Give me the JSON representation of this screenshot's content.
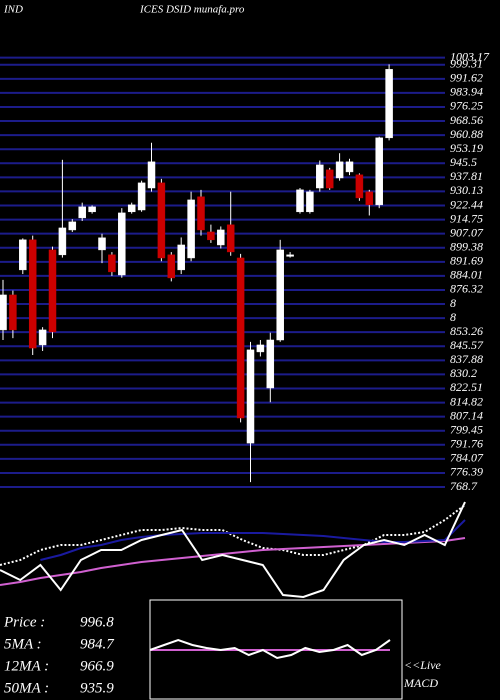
{
  "chart_data": {
    "type": "candlestick",
    "title_left": "IND",
    "title_right": "ICES DSID munafa.pro",
    "ylim": [
      765,
      1006
    ],
    "yticks": [
      1003.17,
      999.31,
      991.62,
      983.94,
      976.25,
      968.56,
      960.88,
      953.19,
      945.5,
      937.81,
      930.13,
      922.44,
      914.75,
      907.07,
      899.38,
      891.69,
      884.01,
      876.32,
      {
        "value": 868.63,
        "label": "8"
      },
      {
        "value": 860.94,
        "label": "8"
      },
      853.26,
      845.57,
      837.88,
      830.2,
      822.51,
      814.82,
      807.14,
      799.45,
      791.76,
      784.07,
      776.39,
      768.7
    ],
    "grid": true,
    "up_color": "#ffffff",
    "down_color": "#cc0000",
    "grid_color": "#1c1c8a",
    "open": [
      854.5,
      873.6,
      887.3,
      903.7,
      846.3,
      898.2,
      895.5,
      909.1,
      915.7,
      919.0,
      898.2,
      895.5,
      884.5,
      919.0,
      920.0,
      932.0,
      934.8,
      895.5,
      887.3,
      893.8,
      927.2,
      908.0,
      900.9,
      911.9,
      893.8,
      792.7,
      842.5,
      822.8,
      849.0,
      895.5,
      919.0,
      919.0,
      932.0,
      941.9,
      937.5,
      940.8,
      939.2,
      929.9,
      922.8,
      959.4
    ],
    "high": [
      881.8,
      876.0,
      904.5,
      906.0,
      856.0,
      900.0,
      947.4,
      915.0,
      924.0,
      922.5,
      907.0,
      897.0,
      921.0,
      924.0,
      936.0,
      956.7,
      937.0,
      897.0,
      905.0,
      930.0,
      931.0,
      912.0,
      911.0,
      930.0,
      896.0,
      848.0,
      849.0,
      853.0,
      903.7,
      897.0,
      932.0,
      931.0,
      947.0,
      943.0,
      951.0,
      948.0,
      940.0,
      931.0,
      960.0,
      999.5
    ],
    "low": [
      849.0,
      850.0,
      885.0,
      840.8,
      843.0,
      850.0,
      894.0,
      908.0,
      914.0,
      918.0,
      891.0,
      884.0,
      883.0,
      918.0,
      919.0,
      930.0,
      892.0,
      881.0,
      885.0,
      892.0,
      906.0,
      902.0,
      899.0,
      895.0,
      804.0,
      771.4,
      840.0,
      815.0,
      848.0,
      894.0,
      918.0,
      918.0,
      930.0,
      931.0,
      936.0,
      939.0,
      925.0,
      917.0,
      921.0,
      958.0
    ],
    "close": [
      873.6,
      854.5,
      903.7,
      844.6,
      854.5,
      853.4,
      910.2,
      913.5,
      921.7,
      921.7,
      904.8,
      886.2,
      918.4,
      922.8,
      934.8,
      946.3,
      893.8,
      882.9,
      900.9,
      925.5,
      909.1,
      903.7,
      909.1,
      897.1,
      806.4,
      843.6,
      846.3,
      849.0,
      898.2,
      895.5,
      931.0,
      929.9,
      944.6,
      932.0,
      946.3,
      946.3,
      926.6,
      922.8,
      959.4,
      996.8
    ],
    "indicator": {
      "ylim": [
        0,
        100
      ],
      "series": [
        {
          "color": "#ffffff",
          "dash": true,
          "values": [
            33.3,
            38.1,
            47.6,
            52.4,
            52.4,
            57.1,
            61.9,
            66.7,
            66.7,
            68.6,
            66.7,
            66.7,
            57.1,
            49.5,
            47.6,
            42.9,
            42.9,
            47.6,
            52.4,
            61.9,
            61.9,
            64.8,
            76.2,
            90.5
          ]
        },
        {
          "color": "#d060d0",
          "values": [
            14.3,
            17.1,
            21.0,
            23.8,
            26.7,
            30.5,
            33.3,
            36.2,
            38.1,
            40.0,
            41.9,
            43.8,
            45.7,
            47.6,
            48.6,
            49.5,
            50.5,
            51.4,
            52.4,
            53.3,
            54.3,
            55.2,
            56.2,
            59.0
          ]
        },
        {
          "color": "#1a1aa0",
          "values": [
            null,
            null,
            38.1,
            42.9,
            49.5,
            52.4,
            57.1,
            60.0,
            61.9,
            62.9,
            63.8,
            63.8,
            63.8,
            63.8,
            62.9,
            61.9,
            61.0,
            59.0,
            57.1,
            55.2,
            55.2,
            56.2,
            57.1,
            76.2
          ]
        },
        {
          "color": "#ffffff",
          "values": [
            28.6,
            19.0,
            33.3,
            9.5,
            38.1,
            47.6,
            47.6,
            57.1,
            61.9,
            66.7,
            38.1,
            42.9,
            38.1,
            33.3,
            4.8,
            2.9,
            9.5,
            38.1,
            52.4,
            57.1,
            52.4,
            61.9,
            52.4,
            93.3
          ]
        }
      ]
    },
    "macd": {
      "ylim": [
        0,
        100
      ],
      "series": [
        {
          "color": "#d060d0",
          "values": [
            50,
            50
          ]
        },
        {
          "color": "#ffffff",
          "values": [
            50,
            55,
            60,
            55,
            52,
            50,
            52,
            45,
            50,
            42,
            45,
            52,
            48,
            50,
            55,
            45,
            50,
            60
          ]
        }
      ]
    },
    "info": [
      {
        "label": "Price   :",
        "value": 996.8
      },
      {
        "label": "5MA :",
        "value": 984.7
      },
      {
        "label": "12MA :",
        "value": 966.9
      },
      {
        "label": "50MA :",
        "value": 935.9
      }
    ],
    "live_label": "<<Live",
    "macd_label": "MACD"
  }
}
